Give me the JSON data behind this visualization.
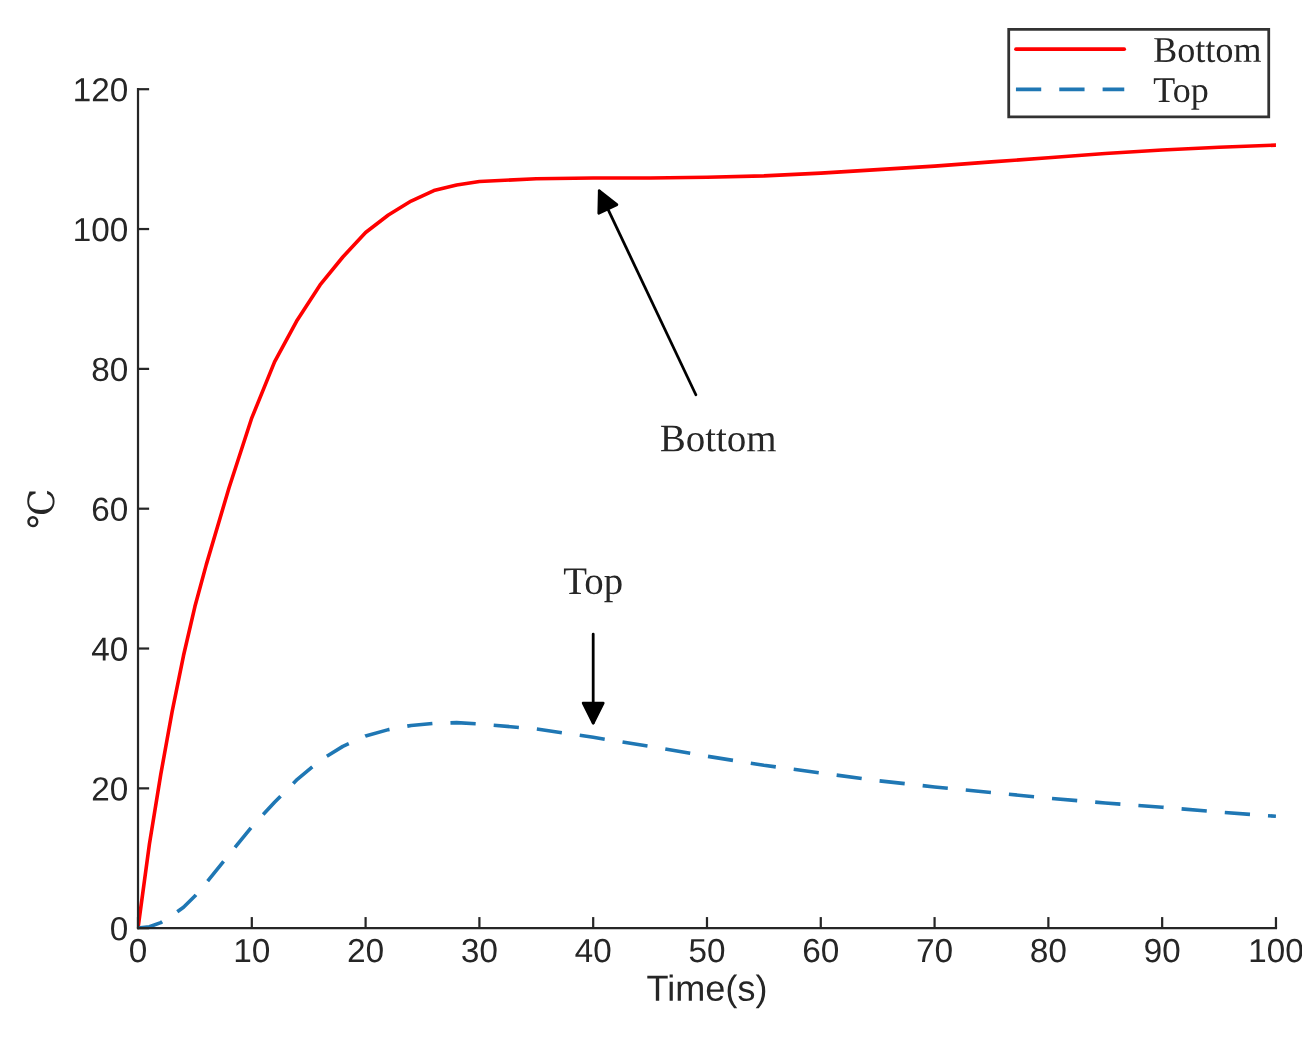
{
  "chart_data": {
    "type": "line",
    "xlabel": "Time(s)",
    "ylabel": "℃",
    "xlim": [
      0,
      100
    ],
    "xticks": [
      0,
      10,
      20,
      30,
      40,
      50,
      60,
      70,
      80,
      90,
      100
    ],
    "ylim": [
      0,
      120
    ],
    "yticks": [
      0,
      20,
      40,
      60,
      80,
      100,
      120
    ],
    "grid": false,
    "legend": "top right",
    "marker": "none",
    "x": [
      0,
      1,
      2,
      3,
      4,
      5,
      6,
      8,
      10,
      12,
      14,
      16,
      18,
      20,
      22,
      24,
      26,
      28,
      30,
      35,
      40,
      45,
      50,
      55,
      60,
      65,
      70,
      75,
      80,
      85,
      90,
      95,
      100
    ],
    "series": [
      {
        "name": "Bottom",
        "color": "#ff0000",
        "line_style": "solid",
        "values": [
          0,
          12,
          22,
          31,
          39,
          46,
          52,
          63,
          73,
          81,
          87,
          92,
          96,
          99.5,
          102,
          104,
          105.5,
          106.3,
          106.8,
          107.2,
          107.3,
          107.3,
          107.4,
          107.6,
          108,
          108.5,
          109,
          109.6,
          110.2,
          110.8,
          111.3,
          111.7,
          112
        ]
      },
      {
        "name": "Top",
        "color": "#1f77b4",
        "line_style": "dashed",
        "values": [
          0,
          0.2,
          0.8,
          1.8,
          3,
          4.6,
          6.5,
          10.5,
          14.5,
          18,
          21.3,
          24,
          26,
          27.5,
          28.4,
          29,
          29.3,
          29.4,
          29.2,
          28.5,
          27.3,
          26,
          24.6,
          23.3,
          22.2,
          21.1,
          20.2,
          19.4,
          18.6,
          17.9,
          17.3,
          16.6,
          16
        ]
      }
    ],
    "annotations": [
      {
        "text": "Bottom",
        "x": 40,
        "y": 107.3
      },
      {
        "text": "Top",
        "x": 40,
        "y": 27.3
      }
    ]
  }
}
